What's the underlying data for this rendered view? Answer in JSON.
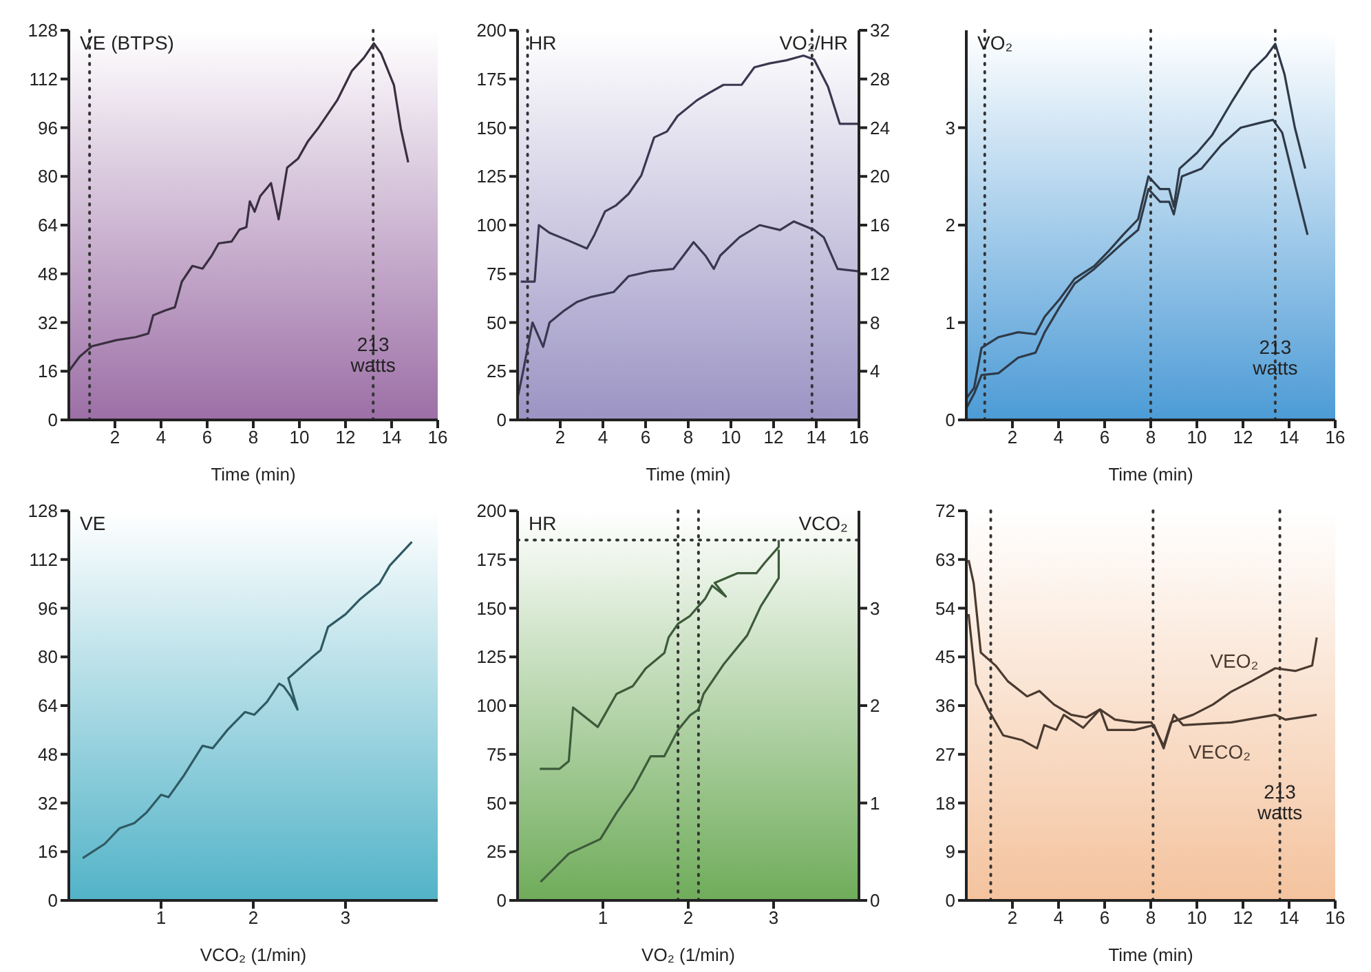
{
  "chart_data": [
    {
      "type": "line",
      "ylabel": "VE (BTPS)",
      "xlabel": "Time (min)",
      "xlim": [
        0,
        16
      ],
      "xticks": [
        2,
        4,
        6,
        8,
        10,
        12,
        14,
        16
      ],
      "ylim": [
        0,
        128
      ],
      "yticks": [
        0,
        16,
        32,
        48,
        64,
        80,
        96,
        112,
        128
      ],
      "series": [
        {
          "color": "#3a2f40",
          "x": [
            0,
            0.47,
            1,
            2.06,
            2.9,
            3.45,
            3.66,
            4.2,
            4.6,
            4.9,
            5.36,
            5.8,
            6.2,
            6.5,
            7.06,
            7.4,
            7.7,
            7.85,
            8.06,
            8.3,
            8.77,
            9.1,
            9.47,
            9.94,
            10.36,
            10.8,
            11.64,
            12.28,
            12.8,
            13.23,
            13.55,
            14.1,
            14.4,
            14.72
          ],
          "values": [
            16,
            20.8,
            24.2,
            26.2,
            27.2,
            28.4,
            34.4,
            36,
            37,
            45.4,
            50.6,
            49.7,
            54,
            58,
            58.6,
            62.5,
            63.3,
            71.8,
            68.4,
            73.5,
            77.8,
            65.9,
            82.9,
            85.8,
            91.4,
            95.7,
            105,
            114.7,
            119,
            123.7,
            120.3,
            110,
            95.7,
            84.6
          ]
        }
      ],
      "ref_lines": [
        {
          "axis": "x",
          "value": 0.9,
          "line_style": "dotted"
        },
        {
          "axis": "x",
          "value": 13.2,
          "line_style": "dotted"
        }
      ],
      "annotations": [
        {
          "text": "213 watts",
          "x": 13.2,
          "y": 28
        }
      ]
    },
    {
      "type": "line",
      "xlabel": "Time (min)",
      "ylabel": "HR",
      "y2label": "VO₂/HR",
      "xlim": [
        0,
        16
      ],
      "xticks": [
        2,
        4,
        6,
        8,
        10,
        12,
        14,
        16
      ],
      "ylim": [
        0,
        200
      ],
      "yticks": [
        0,
        25,
        50,
        75,
        100,
        125,
        150,
        175,
        200
      ],
      "y2lim": [
        0,
        32
      ],
      "y2ticks": [
        4,
        8,
        12,
        16,
        20,
        24,
        28,
        32
      ],
      "series": [
        {
          "color": "#3a3850",
          "x": [
            0.15,
            0.8,
            1,
            1.5,
            2.4,
            3.25,
            3.6,
            4.1,
            4.6,
            5.2,
            5.8,
            6.4,
            7,
            7.5,
            8.4,
            9,
            9.65,
            10.5,
            11.1,
            11.8,
            12.6,
            13.4,
            13.9,
            14.55,
            15.1,
            16
          ],
          "values": [
            71,
            71,
            100,
            96,
            92,
            88,
            95,
            107,
            110,
            116,
            125.5,
            145,
            148,
            156,
            164,
            168,
            172,
            172,
            181,
            183,
            184.6,
            187,
            185,
            171,
            152,
            152
          ]
        },
        {
          "color": "#3a3850",
          "axis": "y2",
          "x": [
            0,
            0.25,
            0.7,
            1.2,
            1.5,
            2.2,
            2.8,
            3.45,
            4.5,
            5.2,
            6.2,
            7.3,
            8.25,
            8.8,
            9.2,
            9.5,
            10.4,
            11.35,
            12.3,
            12.95,
            13.9,
            14.35,
            15,
            16
          ],
          "values": [
            1.8,
            3.9,
            8,
            6,
            8,
            9,
            9.7,
            10.1,
            10.5,
            11.8,
            12.2,
            12.4,
            14.6,
            13.5,
            12.4,
            13.5,
            15,
            16,
            15.6,
            16.3,
            15.6,
            15,
            12.4,
            12.2
          ]
        }
      ],
      "ref_lines": [
        {
          "axis": "x",
          "value": 0.47,
          "line_style": "dotted"
        },
        {
          "axis": "x",
          "value": 13.8,
          "line_style": "dotted"
        }
      ]
    },
    {
      "type": "line",
      "ylabel": "VO₂",
      "xlabel": "Time (min)",
      "xlim": [
        0,
        16
      ],
      "xticks": [
        2,
        4,
        6,
        8,
        10,
        12,
        14,
        16
      ],
      "ylim": [
        0,
        4
      ],
      "yticks": [
        0,
        1,
        2,
        3
      ],
      "series": [
        {
          "color": "#2f3a48",
          "x": [
            0,
            0.34,
            0.66,
            1.4,
            2.25,
            3,
            3.4,
            4.05,
            4.7,
            5.55,
            6.2,
            6.8,
            7.45,
            7.9,
            8.4,
            8.8,
            9,
            9.25,
            10,
            10.65,
            11.5,
            12.35,
            13,
            13.4,
            13.8,
            14.25,
            14.7
          ],
          "values": [
            0.22,
            0.33,
            0.74,
            0.85,
            0.9,
            0.88,
            1.06,
            1.24,
            1.45,
            1.58,
            1.74,
            1.9,
            2.06,
            2.5,
            2.37,
            2.37,
            2.19,
            2.58,
            2.74,
            2.92,
            3.26,
            3.58,
            3.73,
            3.86,
            3.55,
            3,
            2.58
          ]
        },
        {
          "color": "#2f3a48",
          "x": [
            0,
            0.34,
            0.66,
            1.4,
            2.25,
            3,
            3.4,
            4.05,
            4.7,
            5.55,
            6.2,
            6.8,
            7.45,
            7.9,
            8.4,
            8.8,
            9,
            9.35,
            10.2,
            11.05,
            11.9,
            12.75,
            13.3,
            13.7,
            14.25,
            14.8
          ],
          "values": [
            0.12,
            0.27,
            0.46,
            0.48,
            0.64,
            0.69,
            0.9,
            1.16,
            1.4,
            1.55,
            1.69,
            1.82,
            1.95,
            2.37,
            2.24,
            2.24,
            2.11,
            2.5,
            2.58,
            2.82,
            3,
            3.05,
            3.08,
            2.95,
            2.42,
            1.9
          ]
        }
      ],
      "ref_lines": [
        {
          "axis": "x",
          "value": 0.8,
          "line_style": "dotted"
        },
        {
          "axis": "x",
          "value": 8,
          "line_style": "dotted"
        },
        {
          "axis": "x",
          "value": 13.4,
          "line_style": "dotted"
        }
      ],
      "annotations": [
        {
          "text": "213 watts",
          "x": 13.4,
          "y": 0.85
        }
      ]
    },
    {
      "type": "line",
      "ylabel": "VE",
      "xlabel": "VCO₂  (1/min)",
      "xlim": [
        0,
        4
      ],
      "xticks": [
        1,
        2,
        3
      ],
      "ylim": [
        0,
        128
      ],
      "yticks": [
        0,
        16,
        32,
        48,
        64,
        80,
        96,
        112,
        128
      ],
      "series": [
        {
          "color": "#2f5a63",
          "x": [
            0.15,
            0.39,
            0.55,
            0.71,
            0.84,
            1,
            1.08,
            1.24,
            1.45,
            1.56,
            1.72,
            1.91,
            2.01,
            2.15,
            2.28,
            2.33,
            2.41,
            2.48,
            2.38,
            2.63,
            2.73,
            2.81,
            3,
            3.16,
            3.37,
            3.48,
            3.72
          ],
          "values": [
            13.9,
            18.6,
            23.7,
            25.4,
            28.8,
            34.7,
            33.9,
            40.7,
            50.8,
            50,
            56,
            61.9,
            61,
            65.3,
            71.2,
            70.3,
            66.9,
            62.7,
            73,
            79.7,
            82.2,
            89.8,
            94,
            99,
            104.2,
            110,
            117.8
          ]
        }
      ]
    },
    {
      "type": "line",
      "ylabel": "HR",
      "y2label": "VCO₂",
      "xlabel": "VO₂  (1/min)",
      "xlim": [
        0,
        4
      ],
      "xticks": [
        1,
        2,
        3
      ],
      "ylim": [
        0,
        200
      ],
      "yticks": [
        0,
        25,
        50,
        75,
        100,
        125,
        150,
        175,
        200
      ],
      "y2lim": [
        0,
        4
      ],
      "y2ticks": [
        0,
        1,
        2,
        3
      ],
      "series": [
        {
          "color": "#3d5a3a",
          "x": [
            0.26,
            0.49,
            0.6,
            0.65,
            0.94,
            1.16,
            1.35,
            1.5,
            1.72,
            1.77,
            1.88,
            2.02,
            2.12,
            2.2,
            2.28,
            2.44,
            2.31,
            2.58,
            2.8,
            2.9,
            3.06,
            3.06
          ],
          "values": [
            67.5,
            67.5,
            71.5,
            99,
            89,
            106,
            110,
            119,
            127,
            135,
            142,
            146,
            151,
            155,
            161.6,
            156,
            163,
            168,
            168,
            173.5,
            181.5,
            185
          ]
        },
        {
          "color": "#3d5a3a",
          "axis": "y2",
          "x": [
            0.27,
            0.6,
            0.97,
            1.16,
            1.35,
            1.56,
            1.72,
            1.88,
            2.02,
            2.12,
            2.18,
            2.42,
            2.69,
            2.85,
            3.06,
            3.06
          ],
          "values": [
            0.19,
            0.48,
            0.63,
            0.9,
            1.14,
            1.48,
            1.48,
            1.75,
            1.9,
            1.96,
            2.12,
            2.43,
            2.72,
            3.02,
            3.31,
            3.6
          ]
        }
      ],
      "ref_lines": [
        {
          "axis": "y",
          "value": 185,
          "line_style": "dotted"
        },
        {
          "axis": "x",
          "value": 1.88,
          "line_style": "dotted"
        },
        {
          "axis": "x",
          "value": 2.12,
          "line_style": "dotted"
        }
      ]
    },
    {
      "type": "line",
      "xlabel": "Time (min)",
      "xlim": [
        0,
        16
      ],
      "xticks": [
        2,
        4,
        6,
        8,
        10,
        12,
        14,
        16
      ],
      "ylim": [
        0,
        72
      ],
      "yticks": [
        0,
        9,
        18,
        27,
        36,
        45,
        54,
        63,
        72
      ],
      "series": [
        {
          "name": "VEO₂",
          "color": "#4a3a30",
          "x": [
            0.1,
            0.32,
            0.63,
            1.27,
            1.8,
            2.64,
            3.17,
            3.8,
            4.55,
            5.2,
            5.8,
            6.45,
            7.3,
            8.03,
            8.56,
            8.88,
            9.83,
            10.7,
            11.5,
            12.37,
            13.4,
            14.27,
            15,
            15.2
          ],
          "values": [
            62.9,
            58.6,
            45.8,
            43.4,
            40.5,
            37.7,
            38.7,
            36.2,
            34.3,
            33.8,
            35.3,
            33.4,
            32.9,
            32.9,
            28.6,
            32.9,
            34.3,
            36.2,
            38.6,
            40.5,
            42.9,
            42.4,
            43.4,
            48.6
          ]
        },
        {
          "name": "VECO₂",
          "color": "#4a3a30",
          "x": [
            0.1,
            0.42,
            0.95,
            1.6,
            2.43,
            3.07,
            3.38,
            3.9,
            4.23,
            5.07,
            5.8,
            6.13,
            7.3,
            8.14,
            8.56,
            9,
            9.4,
            11.5,
            13.4,
            13.85,
            15.2
          ],
          "values": [
            52.9,
            40,
            35.3,
            30.5,
            29.6,
            28.1,
            32.4,
            31.5,
            34.3,
            31.9,
            35.3,
            31.5,
            31.5,
            32.4,
            28.1,
            34.3,
            32.4,
            32.9,
            34.3,
            33.4,
            34.3
          ]
        }
      ],
      "ref_lines": [
        {
          "axis": "x",
          "value": 1.06,
          "line_style": "dotted"
        },
        {
          "axis": "x",
          "value": 8.1,
          "line_style": "dotted"
        },
        {
          "axis": "x",
          "value": 13.6,
          "line_style": "dotted"
        }
      ],
      "annotations": [
        {
          "text": "213 watts",
          "x": 13.6,
          "y": 22
        }
      ]
    }
  ]
}
